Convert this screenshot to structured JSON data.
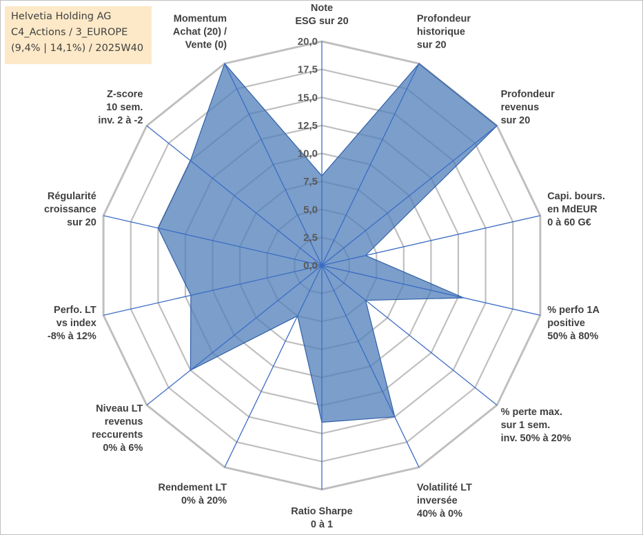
{
  "title_box": {
    "line1": "Helvetia Holding AG",
    "line2": "C4_Actions / 3_EUROPE",
    "line3": "(9,4% | 14,1%) / 2025W40",
    "background": "#fde9c8"
  },
  "chart_data": {
    "type": "radar",
    "rmin": 0,
    "rmax": 20,
    "ticks": [
      "0,0",
      "2,5",
      "5,0",
      "7,5",
      "10,0",
      "12,5",
      "15,0",
      "17,5",
      "20,0"
    ],
    "grid": true,
    "axes": [
      {
        "label": [
          "Note",
          "ESG sur 20"
        ],
        "value": 8.0
      },
      {
        "label": [
          "Profondeur",
          "historique",
          "sur 20"
        ],
        "value": 20.0
      },
      {
        "label": [
          "Profondeur",
          "revenus",
          "sur 20"
        ],
        "value": 20.0
      },
      {
        "label": [
          "Capi. bours.",
          "en MdEUR",
          "0 à 60 G€"
        ],
        "value": 4.0
      },
      {
        "label": [
          "% perfo 1A",
          "positive",
          "50% à 80%"
        ],
        "value": 13.0
      },
      {
        "label": [
          "% perte max.",
          "sur 1 sem.",
          "inv. 50% à 20%"
        ],
        "value": 5.0
      },
      {
        "label": [
          "Volatilité LT",
          "inversée",
          "40% à 0%"
        ],
        "value": 15.0
      },
      {
        "label": [
          "Ratio Sharpe",
          "0 à 1"
        ],
        "value": 14.0
      },
      {
        "label": [
          "Rendement LT",
          "0% à 20%"
        ],
        "value": 5.0
      },
      {
        "label": [
          "Niveau LT",
          "revenus",
          "reccurents",
          "0% à 6%"
        ],
        "value": 15.0
      },
      {
        "label": [
          "Perfo. LT",
          "vs index",
          "-8% à 12%"
        ],
        "value": 12.0
      },
      {
        "label": [
          "Régularité",
          "croissance",
          "sur 20"
        ],
        "value": 15.0
      },
      {
        "label": [
          "Z-score",
          "10 sem.",
          "inv. 2 à -2"
        ],
        "value": 15.0
      },
      {
        "label": [
          "Momentum",
          "Achat (20) /",
          "Vente (0)"
        ],
        "value": 20.0
      }
    ],
    "colors": {
      "fill": "#4f7dba",
      "fill_opacity": 0.75,
      "stroke": "#2f5fa8",
      "grid": "#bfbfbf",
      "spoke": "#3b6cc4"
    }
  }
}
